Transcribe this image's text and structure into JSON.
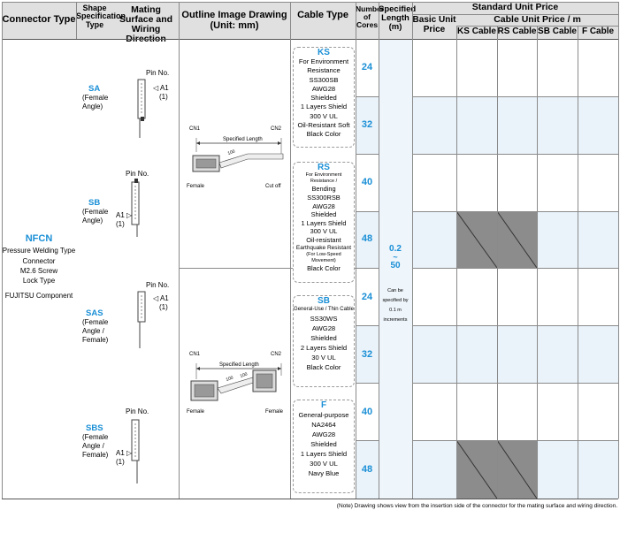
{
  "header": {
    "connector_type": "Connector Type",
    "shape_spec": "Shape Specification Type",
    "mating": "Mating Surface and Wiring Direction",
    "outline": "Outline Image Drawing",
    "outline_unit": "(Unit: mm)",
    "cable_type": "Cable Type",
    "cores": "Number of Cores",
    "length": "Specified Length (m)",
    "standard_price": "Standard Unit Price",
    "basic": "Basic Unit Price",
    "cable_unit": "Cable Unit Price / m",
    "ks_cable": "KS Cable",
    "rs_cable": "RS Cable",
    "sb_cable": "SB Cable",
    "f_cable": "F Cable"
  },
  "connector": {
    "name": "NFCN",
    "desc1": "Pressure Welding Type",
    "desc2": "Connector",
    "desc3": "M2.6 Screw",
    "desc4": "Lock Type",
    "maker": "FUJITSU Component"
  },
  "shapes": [
    {
      "code": "SA",
      "l1": "(Female",
      "l2": "Angle)",
      "l3": ""
    },
    {
      "code": "SB",
      "l1": "(Female",
      "l2": "Angle)",
      "l3": ""
    },
    {
      "code": "SAS",
      "l1": "(Female",
      "l2": "Angle /",
      "l3": "Female)"
    },
    {
      "code": "SBS",
      "l1": "(Female",
      "l2": "Angle /",
      "l3": "Female)"
    }
  ],
  "mating": {
    "pin_no": "Pin No.",
    "a1": "A1",
    "one": "(1)"
  },
  "outline": {
    "cn1": "CN1",
    "cn2": "CN2",
    "spec_len": "Specified Length",
    "female": "Female",
    "cutoff": "Cut off",
    "hundred": "100"
  },
  "cables": [
    {
      "code": "KS",
      "lines": [
        "For Environment",
        "Resistance",
        "SS300SB",
        "AWG28",
        "Shielded",
        "1 Layers Shield",
        "300 V UL",
        "Oil-Resistant Soft",
        "Black Color"
      ]
    },
    {
      "code": "RS",
      "lines": [
        "For Environment Resistance /",
        "Bending",
        "SS300RSB",
        "AWG28",
        "Shielded",
        "1 Layers Shield",
        "300 V UL",
        "Oil-resistant",
        "Earthquake Resistant",
        "(For Low-Speed Movement)",
        "Black Color"
      ]
    },
    {
      "code": "SB",
      "lines": [
        "General-Use / Thin Cable",
        "SS30WS",
        "AWG28",
        "Shielded",
        "2 Layers Shield",
        "30 V UL",
        "Black Color"
      ]
    },
    {
      "code": "F",
      "lines": [
        "General-purpose",
        "NA2464",
        "AWG28",
        "Shielded",
        "1 Layers Shield",
        "300 V UL",
        "Navy Blue"
      ]
    }
  ],
  "cores": [
    "24",
    "32",
    "40",
    "48",
    "24",
    "32",
    "40",
    "48"
  ],
  "length": {
    "min": "0.2",
    "dash": "~",
    "max": "50",
    "note1": "Can be specified by",
    "note2": "0.1 m",
    "note3": "increments"
  },
  "footnote": "(Note) Drawing shows view from the insertion side of the connector for the mating surface and wiring direction.",
  "colors": {
    "accent": "#1a8fd6",
    "shade": "#eaf3fa",
    "na": "#8c8c8c",
    "header": "#e0e0e0"
  }
}
